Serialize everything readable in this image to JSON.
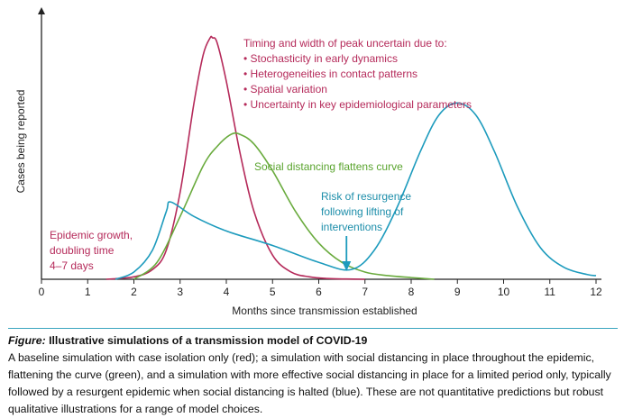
{
  "chart_data": {
    "type": "line",
    "ylabel": "Cases being reported",
    "xlabel": "Months since transmission established",
    "xlim": [
      0,
      12
    ],
    "x_ticks": [
      "0",
      "1",
      "2",
      "3",
      "4",
      "5",
      "6",
      "7",
      "8",
      "9",
      "10",
      "11",
      "12"
    ],
    "y_tick_labels": "none",
    "grid": false,
    "legend": "none",
    "series": [
      {
        "color": "#b52a5a",
        "x": [
          1.4,
          2.0,
          2.4,
          2.7,
          3.0,
          3.3,
          3.5,
          3.65,
          3.7,
          3.8,
          4.0,
          4.3,
          4.6,
          5.0,
          5.4,
          5.8,
          6.2,
          6.6,
          7.0
        ],
        "y": [
          0.0,
          0.01,
          0.04,
          0.12,
          0.36,
          0.73,
          0.93,
          1.0,
          1.0,
          0.98,
          0.82,
          0.52,
          0.28,
          0.1,
          0.03,
          0.01,
          0.003,
          0.001,
          0.0
        ]
      },
      {
        "color": "#6aab3e",
        "x": [
          2.0,
          2.5,
          3.0,
          3.5,
          3.8,
          4.1,
          4.3,
          4.6,
          5.0,
          5.5,
          6.0,
          6.5,
          7.0,
          7.5,
          8.0,
          8.5
        ],
        "y": [
          0.0,
          0.07,
          0.26,
          0.47,
          0.55,
          0.6,
          0.6,
          0.56,
          0.45,
          0.28,
          0.15,
          0.07,
          0.03,
          0.015,
          0.007,
          0.0
        ]
      },
      {
        "color": "#1d9bbd",
        "x": [
          1.6,
          2.0,
          2.4,
          2.7,
          2.8,
          3.3,
          4.0,
          5.0,
          6.0,
          6.7,
          7.2,
          7.7,
          8.2,
          8.6,
          9.0,
          9.4,
          9.8,
          10.3,
          10.8,
          11.3,
          11.8,
          12.0
        ],
        "y": [
          0.0,
          0.03,
          0.12,
          0.28,
          0.32,
          0.26,
          0.2,
          0.14,
          0.07,
          0.04,
          0.12,
          0.3,
          0.53,
          0.68,
          0.73,
          0.68,
          0.53,
          0.3,
          0.13,
          0.05,
          0.02,
          0.015
        ]
      }
    ],
    "annotations": {
      "peak_title": "Timing and width of peak uncertain due to:",
      "peak_items": [
        "Stochasticity in early dynamics",
        "Heterogeneities in contact patterns",
        "Spatial variation",
        "Uncertainty in key epidemiological parameters"
      ],
      "distancing": "Social distancing flattens curve",
      "resurgence": [
        "Risk of resurgence",
        "following lifting of",
        "interventions"
      ],
      "growth": [
        "Epidemic growth,",
        "doubling time",
        "4–7 days"
      ]
    },
    "colors": {
      "red": "#b52a5a",
      "green": "#6aab3e",
      "blue": "#1d9bbd",
      "axis": "#222222"
    }
  },
  "caption": {
    "title_prefix": "Figure:",
    "title_rest": " Illustrative simulations of a transmission model of COVID-19",
    "body": "A baseline simulation with case isolation only (red); a simulation with social distancing in place throughout the epidemic, flattening the curve (green), and a simulation with more effective social distancing in place for a limited period only, typically followed by a resurgent epidemic when social distancing is halted (blue). These are not quantitative predictions but robust qualitative illustrations for a range of model choices."
  }
}
